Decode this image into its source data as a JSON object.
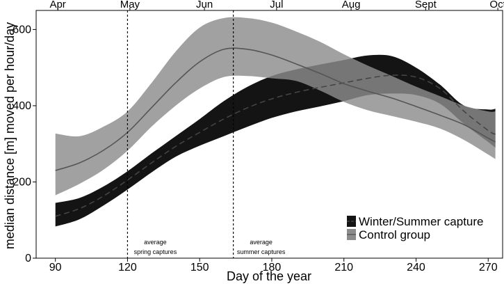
{
  "chart_data": {
    "type": "line",
    "title": "",
    "xlabel": "Day of the year",
    "ylabel": "median distance [m] moved per hour/day",
    "xlim": [
      82,
      276
    ],
    "ylim": [
      0,
      650
    ],
    "x_ticks": [
      "90",
      "120",
      "150",
      "180",
      "210",
      "240",
      "270"
    ],
    "y_ticks": [
      "0",
      "200",
      "400",
      "600"
    ],
    "top_axis": {
      "labels": [
        "Apr",
        "May",
        "Jun",
        "Jul",
        "Aug",
        "Sept",
        "Oct"
      ],
      "days": [
        91,
        121,
        152,
        182,
        213,
        244,
        274
      ]
    },
    "grid": false,
    "legend_position": "bottom-right",
    "vlines": [
      {
        "x": 120,
        "label_lines": [
          "average",
          "spring captures"
        ]
      },
      {
        "x": 164,
        "label_lines": [
          "average",
          "summer captures"
        ]
      }
    ],
    "series": [
      {
        "name": "Winter/Summer capture",
        "color": "#141414",
        "line_color": "#444444",
        "line_style": "dashed",
        "x": [
          90,
          100,
          110,
          120,
          130,
          140,
          150,
          160,
          170,
          180,
          190,
          200,
          210,
          220,
          230,
          240,
          250,
          260,
          270,
          273
        ],
        "y": [
          110,
          130,
          163,
          205,
          250,
          293,
          330,
          365,
          395,
          418,
          435,
          448,
          460,
          472,
          480,
          475,
          445,
          385,
          335,
          325
        ],
        "upper": [
          145,
          158,
          188,
          228,
          275,
          320,
          365,
          412,
          450,
          478,
          495,
          508,
          520,
          532,
          530,
          500,
          455,
          400,
          390,
          392
        ],
        "lower": [
          83,
          102,
          138,
          180,
          225,
          266,
          295,
          320,
          345,
          368,
          385,
          398,
          412,
          428,
          432,
          428,
          405,
          352,
          305,
          290
        ]
      },
      {
        "name": "Control group",
        "color": "#8c8c8c",
        "line_color": "#555555",
        "line_style": "solid",
        "x": [
          90,
          100,
          110,
          120,
          130,
          140,
          150,
          160,
          170,
          180,
          190,
          200,
          210,
          220,
          230,
          240,
          250,
          260,
          270,
          273
        ],
        "y": [
          230,
          250,
          283,
          330,
          395,
          460,
          515,
          548,
          548,
          533,
          510,
          485,
          458,
          438,
          420,
          398,
          375,
          350,
          315,
          305
        ],
        "upper": [
          327,
          320,
          345,
          385,
          460,
          542,
          605,
          630,
          630,
          618,
          595,
          568,
          535,
          505,
          478,
          450,
          425,
          400,
          385,
          385
        ],
        "lower": [
          165,
          195,
          232,
          282,
          345,
          400,
          445,
          475,
          478,
          472,
          465,
          440,
          410,
          388,
          373,
          358,
          340,
          310,
          272,
          260
        ]
      }
    ]
  }
}
